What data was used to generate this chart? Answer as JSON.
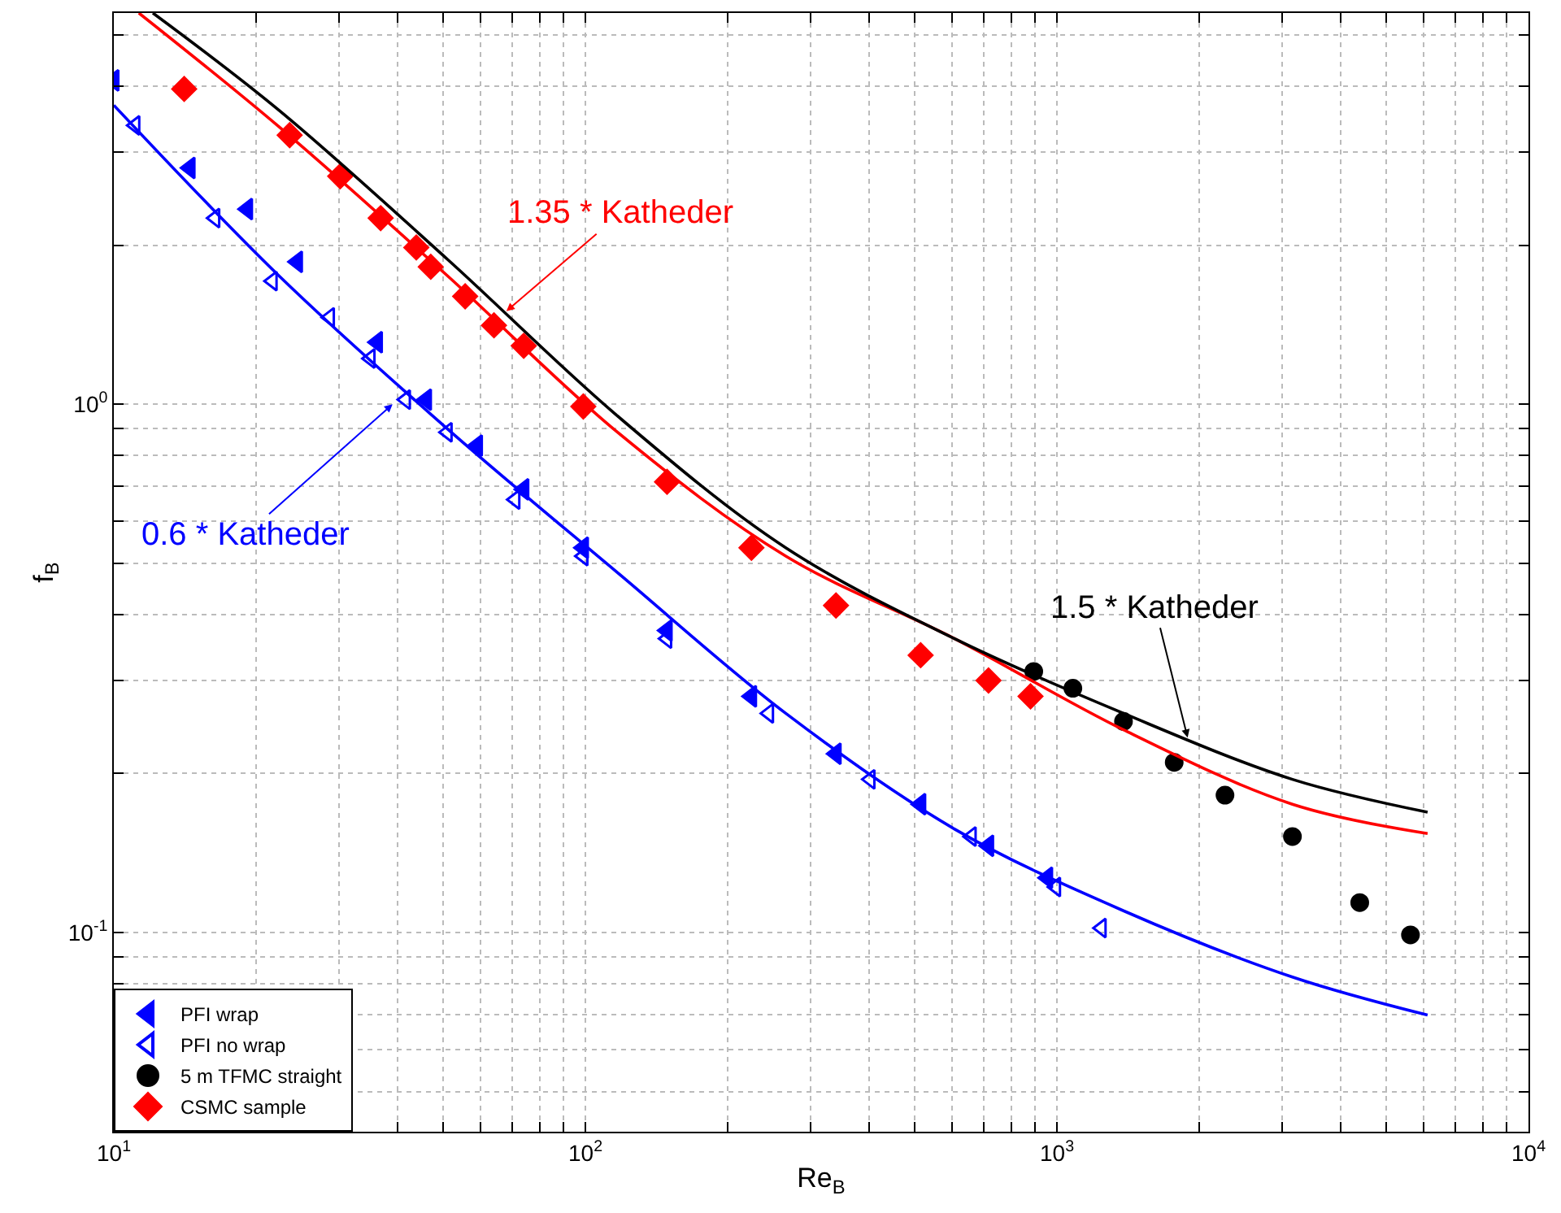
{
  "chart_data": {
    "type": "scatter",
    "xlabel": "Re$_{B}$",
    "ylabel": "f$_{B}$",
    "log": "xy",
    "grid": true,
    "legend": "bottom left",
    "xlim": [
      10,
      10000
    ],
    "ylim": [
      0.042,
      5.5
    ],
    "xticks": [
      {
        "value": 10,
        "label": "10$^{1}$"
      },
      {
        "value": 20,
        "label": null
      },
      {
        "value": 30,
        "label": null
      },
      {
        "value": 40,
        "label": null
      },
      {
        "value": 50,
        "label": null
      },
      {
        "value": 60,
        "label": null
      },
      {
        "value": 70,
        "label": null
      },
      {
        "value": 80,
        "label": null
      },
      {
        "value": 90,
        "label": null
      },
      {
        "value": 100,
        "label": "10$^{2}$"
      },
      {
        "value": 200,
        "label": null
      },
      {
        "value": 300,
        "label": null
      },
      {
        "value": 400,
        "label": null
      },
      {
        "value": 500,
        "label": null
      },
      {
        "value": 600,
        "label": null
      },
      {
        "value": 700,
        "label": null
      },
      {
        "value": 800,
        "label": null
      },
      {
        "value": 900,
        "label": null
      },
      {
        "value": 1000,
        "label": "10$^{3}$"
      },
      {
        "value": 2000,
        "label": null
      },
      {
        "value": 3000,
        "label": null
      },
      {
        "value": 4000,
        "label": null
      },
      {
        "value": 5000,
        "label": null
      },
      {
        "value": 6000,
        "label": null
      },
      {
        "value": 7000,
        "label": null
      },
      {
        "value": 8000,
        "label": null
      },
      {
        "value": 9000,
        "label": null
      },
      {
        "value": 10000,
        "label": "10$^{4}$"
      }
    ],
    "yticks": [
      {
        "value": 0.05,
        "label": null
      },
      {
        "value": 0.06,
        "label": null
      },
      {
        "value": 0.07,
        "label": null
      },
      {
        "value": 0.08,
        "label": null
      },
      {
        "value": 0.09,
        "label": null
      },
      {
        "value": 0.1,
        "label": "10$^{-1}$"
      },
      {
        "value": 0.2,
        "label": null
      },
      {
        "value": 0.3,
        "label": null
      },
      {
        "value": 0.4,
        "label": null
      },
      {
        "value": 0.5,
        "label": null
      },
      {
        "value": 0.6,
        "label": null
      },
      {
        "value": 0.7,
        "label": null
      },
      {
        "value": 0.8,
        "label": null
      },
      {
        "value": 0.9,
        "label": null
      },
      {
        "value": 1,
        "label": "10$^{0}$"
      },
      {
        "value": 2,
        "label": null
      },
      {
        "value": 3,
        "label": null
      },
      {
        "value": 4,
        "label": null
      },
      {
        "value": 5,
        "label": null
      }
    ],
    "series": [
      {
        "name": "PFI wrap",
        "marker": "triangle",
        "color": "#0000ff",
        "x": [
          10,
          14.5,
          19.2,
          24.5,
          36.2,
          46,
          59,
          74,
          99,
          149,
          225,
          340,
          514,
          716,
          955
        ],
        "values": [
          4.1,
          2.8,
          2.34,
          1.86,
          1.31,
          1.02,
          0.835,
          0.69,
          0.535,
          0.373,
          0.28,
          0.218,
          0.175,
          0.146,
          0.127
        ]
      },
      {
        "name": "PFI no wrap",
        "marker": "triangle-open",
        "color": "#0000ff",
        "x": [
          11.1,
          16.4,
          21.7,
          28.7,
          35,
          41.6,
          51,
          71,
          99,
          149,
          245,
          402,
          659,
          995,
          1243
        ],
        "values": [
          3.37,
          2.25,
          1.71,
          1.46,
          1.22,
          1.02,
          0.885,
          0.66,
          0.516,
          0.36,
          0.26,
          0.195,
          0.152,
          0.122,
          0.102
        ]
      },
      {
        "name": "5 m TFMC straight",
        "marker": "circle",
        "color": "#000000",
        "x": [
          893,
          1081,
          1384,
          1773,
          2272,
          3158,
          4387,
          5620
        ],
        "values": [
          0.312,
          0.29,
          0.251,
          0.21,
          0.182,
          0.152,
          0.114,
          0.099
        ]
      },
      {
        "name": "CSMC sample",
        "marker": "diamond",
        "color": "#ff0000",
        "x": [
          14.1,
          23.6,
          30.2,
          36.8,
          43.8,
          47,
          55.6,
          64,
          74,
          99,
          149,
          225,
          340,
          514,
          716,
          879
        ],
        "values": [
          3.95,
          3.23,
          2.7,
          2.25,
          1.98,
          1.82,
          1.6,
          1.41,
          1.29,
          0.99,
          0.713,
          0.535,
          0.416,
          0.335,
          0.3,
          0.28
        ]
      },
      {
        "type": "line",
        "marker": "none",
        "color": "#ff0000",
        "x": [
          11.3,
          22.4,
          51,
          117,
          266,
          607,
          1384,
          3158,
          6110
        ],
        "values": [
          5.5,
          3.35,
          1.75,
          0.885,
          0.516,
          0.36,
          0.242,
          0.175,
          0.154
        ]
      },
      {
        "type": "line",
        "marker": "none",
        "color": "#000000",
        "x": [
          12.1,
          22.4,
          51,
          117,
          266,
          607,
          1384,
          3158,
          6110
        ],
        "values": [
          5.5,
          3.6,
          1.88,
          0.95,
          0.535,
          0.36,
          0.26,
          0.195,
          0.169
        ]
      },
      {
        "type": "line",
        "marker": "none",
        "color": "#0000ff",
        "x": [
          10,
          22.4,
          51,
          117,
          266,
          607,
          1384,
          3158,
          6110
        ],
        "values": [
          3.68,
          1.75,
          0.898,
          0.48,
          0.26,
          0.157,
          0.11,
          0.0824,
          0.0698
        ]
      }
    ],
    "annotations": [
      {
        "text": "1.35 * Katheder",
        "x": 68,
        "y": 1.5
      },
      {
        "text": "1.5 * Katheder",
        "x": 1893,
        "y": 0.234
      },
      {
        "text": "0.6 * Katheder",
        "x": 39,
        "y": 1.0
      }
    ]
  }
}
